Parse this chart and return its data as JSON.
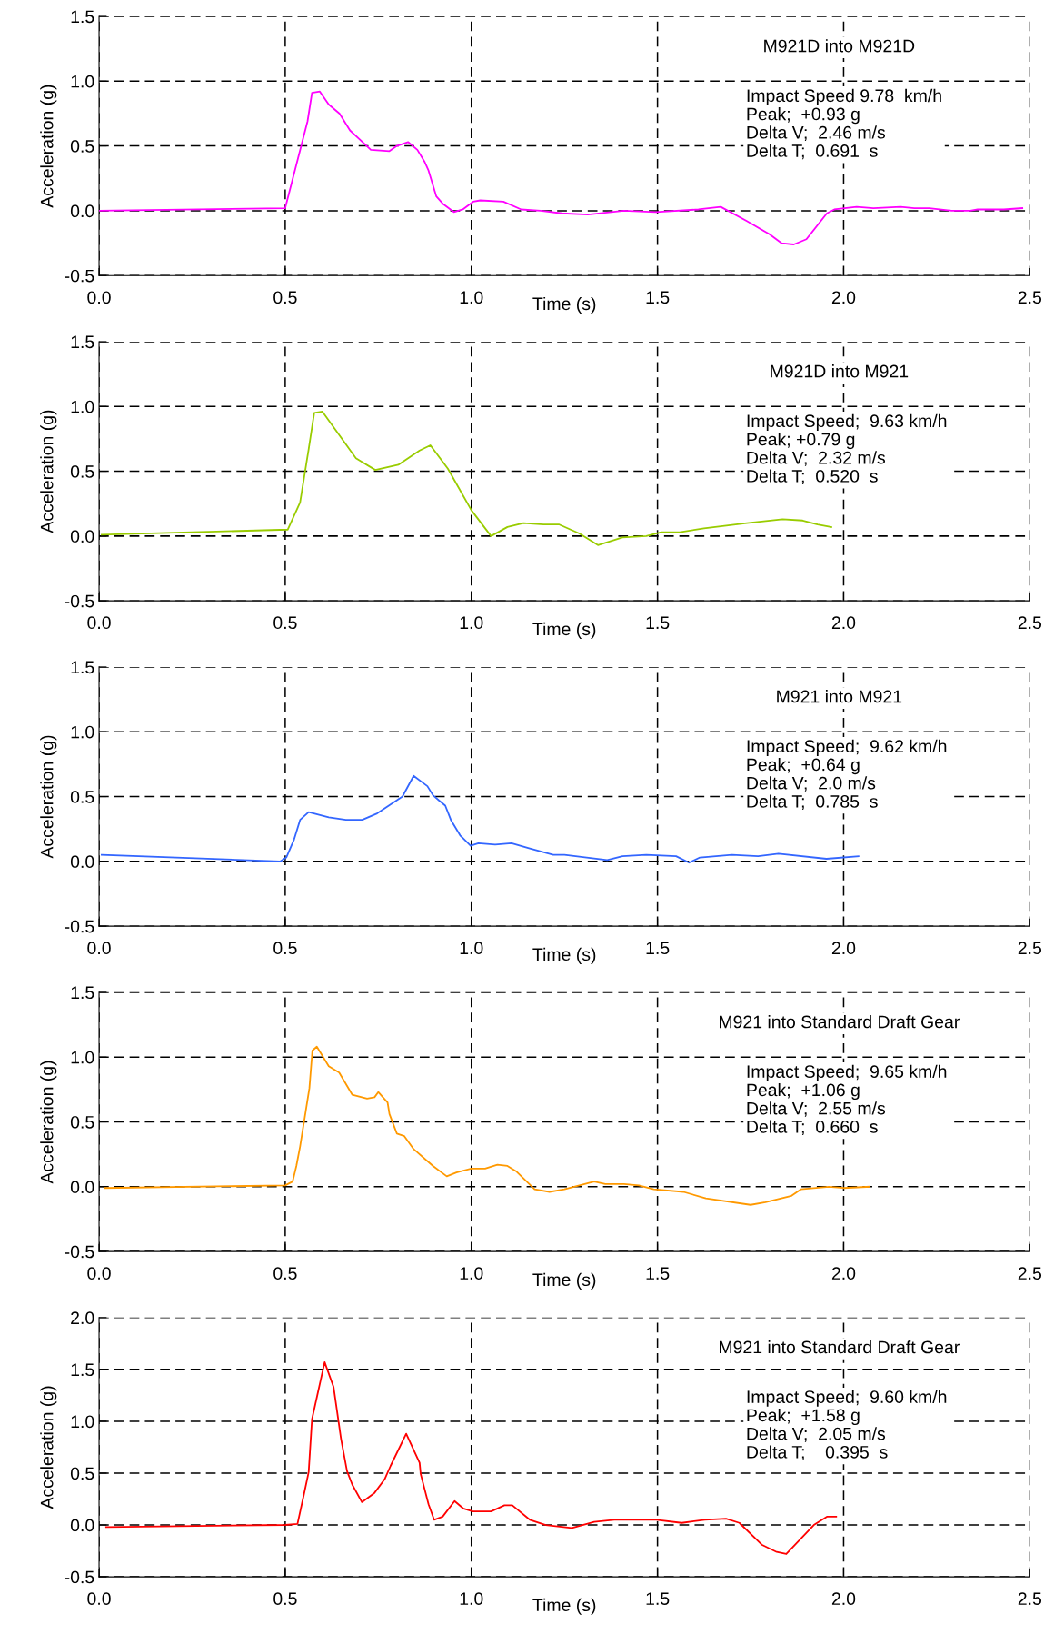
{
  "chart_data": [
    {
      "type": "line",
      "title": "M921D into M921D",
      "xlabel": "Time (s)",
      "ylabel": "Acceleration (g)",
      "annotations": [
        "Impact Speed 9.78  km/h",
        "Peak;  +0.93 g",
        "Delta V;  2.46 m/s",
        "Delta T;  0.691  s"
      ],
      "xlim": [
        0,
        2.5
      ],
      "xticks": [
        {
          "value": 0,
          "label": "0.0"
        },
        0.5,
        {
          "value": 1,
          "label": "1.0"
        },
        1.5,
        {
          "value": 2,
          "label": "2.0"
        },
        2.5
      ],
      "ylim": [
        -0.5,
        1.5
      ],
      "yticks": [
        -0.5,
        {
          "value": 0,
          "label": "0.0"
        },
        0.5,
        {
          "value": 1,
          "label": "1.0"
        },
        1.5
      ],
      "grid": true,
      "line_style": "solid",
      "marker": "none",
      "series": [
        {
          "color": "#ff00ff",
          "x": [
            0,
            0.5,
            0.56,
            0.572,
            0.593,
            0.617,
            0.646,
            0.674,
            0.7,
            0.73,
            0.78,
            0.8,
            0.83,
            0.855,
            0.874,
            0.885,
            0.906,
            0.925,
            0.953,
            0.977,
            1.005,
            1.024,
            1.086,
            1.134,
            1.186,
            1.243,
            1.313,
            1.41,
            1.495,
            1.61,
            1.67,
            1.74,
            1.8,
            1.833,
            1.866,
            1.9,
            1.955,
            1.975,
            2.035,
            2.08,
            2.153,
            2.19,
            2.23,
            2.29,
            2.34,
            2.36,
            2.43,
            2.48
          ],
          "values": [
            0,
            0.02,
            0.69,
            0.91,
            0.92,
            0.82,
            0.75,
            0.62,
            0.55,
            0.47,
            0.46,
            0.5,
            0.53,
            0.47,
            0.38,
            0.31,
            0.11,
            0.05,
            -0.01,
            0.01,
            0.07,
            0.08,
            0.07,
            0.01,
            0.0,
            -0.02,
            -0.03,
            0.0,
            -0.01,
            0.01,
            0.03,
            -0.08,
            -0.18,
            -0.25,
            -0.26,
            -0.22,
            -0.02,
            0.01,
            0.03,
            0.02,
            0.03,
            0.02,
            0.02,
            0.0,
            0.0,
            0.01,
            0.01,
            0.02
          ]
        }
      ]
    },
    {
      "type": "line",
      "title": "M921D into M921",
      "xlabel": "Time (s)",
      "ylabel": "Acceleration (g)",
      "annotations": [
        "Impact Speed;  9.63 km/h",
        "Peak; +0.79 g",
        "Delta V;  2.32 m/s",
        "Delta T;  0.520  s"
      ],
      "xlim": [
        0,
        2.5
      ],
      "xticks": [
        {
          "value": 0,
          "label": "0.0"
        },
        0.5,
        {
          "value": 1,
          "label": "1.0"
        },
        1.5,
        {
          "value": 2,
          "label": "2.0"
        },
        2.5
      ],
      "ylim": [
        -0.5,
        1.5
      ],
      "yticks": [
        -0.5,
        {
          "value": 0,
          "label": "0.0"
        },
        0.5,
        {
          "value": 1,
          "label": "1.0"
        },
        1.5
      ],
      "grid": true,
      "line_style": "solid",
      "marker": "none",
      "series": [
        {
          "color": "#99cc00",
          "x": [
            0.007,
            0.507,
            0.54,
            0.563,
            0.578,
            0.6,
            0.69,
            0.742,
            0.804,
            0.861,
            0.89,
            0.937,
            1.0,
            1.053,
            1.097,
            1.14,
            1.194,
            1.235,
            1.29,
            1.34,
            1.406,
            1.47,
            1.51,
            1.56,
            1.625,
            1.74,
            1.836,
            1.89,
            1.93,
            1.967
          ],
          "values": [
            0.01,
            0.05,
            0.26,
            0.67,
            0.95,
            0.96,
            0.6,
            0.51,
            0.55,
            0.66,
            0.7,
            0.52,
            0.2,
            0.0,
            0.07,
            0.1,
            0.09,
            0.09,
            0.02,
            -0.07,
            -0.01,
            0.0,
            0.03,
            0.03,
            0.06,
            0.1,
            0.13,
            0.12,
            0.09,
            0.07
          ]
        }
      ]
    },
    {
      "type": "line",
      "title": "M921 into M921",
      "xlabel": "Time (s)",
      "ylabel": "Acceleration (g)",
      "annotations": [
        "Impact Speed;  9.62 km/h",
        "Peak;  +0.64 g",
        "Delta V;  2.0 m/s",
        "Delta T;  0.785  s"
      ],
      "xlim": [
        0,
        2.5
      ],
      "xticks": [
        {
          "value": 0,
          "label": "0.0"
        },
        0.5,
        {
          "value": 1,
          "label": "1.0"
        },
        1.5,
        {
          "value": 2,
          "label": "2.0"
        },
        2.5
      ],
      "ylim": [
        -0.5,
        1.5
      ],
      "yticks": [
        -0.5,
        {
          "value": 0,
          "label": "0.0"
        },
        0.5,
        {
          "value": 1,
          "label": "1.0"
        },
        1.5
      ],
      "grid": true,
      "line_style": "solid",
      "marker": "none",
      "series": [
        {
          "color": "#3366ff",
          "x": [
            0.007,
            0.487,
            0.503,
            0.524,
            0.54,
            0.563,
            0.617,
            0.663,
            0.707,
            0.747,
            0.815,
            0.845,
            0.882,
            0.897,
            0.913,
            0.93,
            0.945,
            0.97,
            0.998,
            1.019,
            1.064,
            1.108,
            1.157,
            1.22,
            1.25,
            1.365,
            1.406,
            1.47,
            1.55,
            1.585,
            1.614,
            1.7,
            1.77,
            1.825,
            1.954,
            2.04
          ],
          "values": [
            0.05,
            0.0,
            0.03,
            0.17,
            0.32,
            0.38,
            0.34,
            0.32,
            0.32,
            0.37,
            0.5,
            0.66,
            0.58,
            0.51,
            0.47,
            0.43,
            0.32,
            0.2,
            0.12,
            0.14,
            0.13,
            0.14,
            0.1,
            0.05,
            0.05,
            0.01,
            0.04,
            0.05,
            0.04,
            -0.01,
            0.03,
            0.05,
            0.04,
            0.06,
            0.02,
            0.04
          ]
        }
      ]
    },
    {
      "type": "line",
      "title": "M921 into Standard Draft Gear",
      "xlabel": "Time (s)",
      "ylabel": "Acceleration (g)",
      "annotations": [
        "Impact Speed;  9.65 km/h",
        "Peak;  +1.06 g",
        "Delta V;  2.55 m/s",
        "Delta T;  0.660  s"
      ],
      "xlim": [
        0,
        2.5
      ],
      "xticks": [
        {
          "value": 0,
          "label": "0.0"
        },
        0.5,
        {
          "value": 1,
          "label": "1.0"
        },
        1.5,
        {
          "value": 2,
          "label": "2.0"
        },
        2.5
      ],
      "ylim": [
        -0.5,
        1.5
      ],
      "yticks": [
        -0.5,
        {
          "value": 0,
          "label": "0.0"
        },
        0.5,
        {
          "value": 1,
          "label": "1.0"
        },
        1.5
      ],
      "grid": true,
      "line_style": "solid",
      "marker": "none",
      "series": [
        {
          "color": "#ff9900",
          "x": [
            0.015,
            0.5,
            0.52,
            0.53,
            0.54,
            0.555,
            0.565,
            0.573,
            0.585,
            0.617,
            0.645,
            0.68,
            0.72,
            0.74,
            0.75,
            0.775,
            0.78,
            0.8,
            0.82,
            0.845,
            0.897,
            0.934,
            0.96,
            1.0,
            1.037,
            1.07,
            1.097,
            1.12,
            1.17,
            1.21,
            1.25,
            1.33,
            1.36,
            1.41,
            1.45,
            1.49,
            1.57,
            1.63,
            1.75,
            1.79,
            1.86,
            1.885,
            1.96,
            2.0,
            2.07
          ],
          "values": [
            -0.01,
            0.01,
            0.04,
            0.16,
            0.31,
            0.58,
            0.76,
            1.05,
            1.08,
            0.93,
            0.88,
            0.71,
            0.68,
            0.69,
            0.73,
            0.65,
            0.56,
            0.41,
            0.39,
            0.29,
            0.16,
            0.08,
            0.11,
            0.14,
            0.14,
            0.17,
            0.16,
            0.12,
            -0.02,
            -0.04,
            -0.02,
            0.04,
            0.02,
            0.02,
            0.01,
            -0.02,
            -0.04,
            -0.09,
            -0.14,
            -0.12,
            -0.07,
            -0.02,
            0.0,
            -0.01,
            0.0
          ]
        }
      ]
    },
    {
      "type": "line",
      "title": "M921 into Standard Draft Gear",
      "xlabel": "Time (s)",
      "ylabel": "Acceleration (g)",
      "annotations": [
        "Impact Speed;  9.60 km/h",
        "Peak;  +1.58 g",
        "Delta V;  2.05 m/s",
        "Delta T;    0.395  s"
      ],
      "xlim": [
        0,
        2.5
      ],
      "xticks": [
        {
          "value": 0,
          "label": "0.0"
        },
        0.5,
        {
          "value": 1,
          "label": "1.0"
        },
        1.5,
        {
          "value": 2,
          "label": "2.0"
        },
        2.5
      ],
      "ylim": [
        -0.5,
        2.0
      ],
      "yticks": [
        -0.5,
        {
          "value": 0,
          "label": "0.0"
        },
        0.5,
        {
          "value": 1,
          "label": "1.0"
        },
        1.5,
        {
          "value": 2,
          "label": "2.0"
        }
      ],
      "grid": true,
      "line_style": "solid",
      "marker": "none",
      "series": [
        {
          "color": "#ff0000",
          "x": [
            0.019,
            0.5,
            0.533,
            0.55,
            0.563,
            0.572,
            0.588,
            0.606,
            0.63,
            0.65,
            0.666,
            0.68,
            0.706,
            0.74,
            0.767,
            0.783,
            0.825,
            0.861,
            0.864,
            0.885,
            0.9,
            0.923,
            0.955,
            0.978,
            1.004,
            1.053,
            1.089,
            1.11,
            1.157,
            1.2,
            1.27,
            1.33,
            1.384,
            1.497,
            1.565,
            1.627,
            1.684,
            1.72,
            1.78,
            1.82,
            1.846,
            1.92,
            1.955,
            1.98
          ],
          "values": [
            -0.02,
            0.0,
            0.01,
            0.29,
            0.51,
            1.02,
            1.28,
            1.57,
            1.33,
            0.83,
            0.52,
            0.39,
            0.22,
            0.31,
            0.44,
            0.57,
            0.88,
            0.6,
            0.49,
            0.2,
            0.05,
            0.08,
            0.23,
            0.16,
            0.13,
            0.13,
            0.19,
            0.19,
            0.05,
            0.0,
            -0.03,
            0.03,
            0.05,
            0.05,
            0.02,
            0.05,
            0.06,
            0.02,
            -0.19,
            -0.26,
            -0.28,
            0.0,
            0.08,
            0.08
          ]
        }
      ]
    }
  ]
}
